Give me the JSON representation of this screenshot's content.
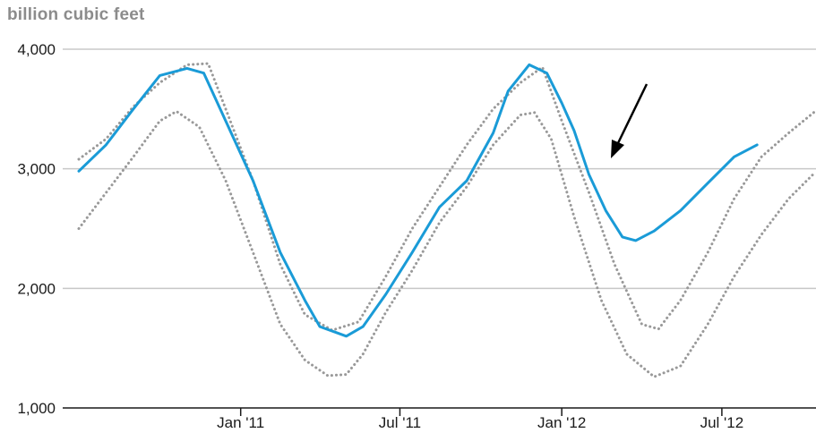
{
  "unit_label": "billion cubic feet",
  "colors": {
    "series": "#1a9bd7",
    "range": "#999999",
    "grid": "#c8c8c8",
    "axis": "#1a1a1a",
    "arrow": "#000000"
  },
  "chart_data": {
    "type": "line",
    "title": "",
    "xlabel": "",
    "ylabel": "billion cubic feet",
    "ylim": [
      1000,
      4000
    ],
    "yticks": [
      1000,
      2000,
      3000,
      4000
    ],
    "ytick_labels": [
      "1,000",
      "2,000",
      "3,000",
      "4,000"
    ],
    "xlim": [
      "2010-07-01",
      "2012-10-15"
    ],
    "xticks": [
      "2011-01-01",
      "2011-07-01",
      "2012-01-01",
      "2012-07-01"
    ],
    "xtick_labels": [
      "Jan '11",
      "Jul '11",
      "Jan '12",
      "Jul '12"
    ],
    "grid": true,
    "legend": "none",
    "annotation": "arrow pointing at the working gas storage line in early 2012",
    "series": [
      {
        "role": "value",
        "style": "solid",
        "points": [
          [
            "2010-07-01",
            2980
          ],
          [
            "2010-08-01",
            3200
          ],
          [
            "2010-09-01",
            3500
          ],
          [
            "2010-10-01",
            3780
          ],
          [
            "2010-11-01",
            3840
          ],
          [
            "2010-11-20",
            3800
          ],
          [
            "2010-12-15",
            3400
          ],
          [
            "2011-01-15",
            2900
          ],
          [
            "2011-02-15",
            2300
          ],
          [
            "2011-03-15",
            1900
          ],
          [
            "2011-04-01",
            1680
          ],
          [
            "2011-04-20",
            1630
          ],
          [
            "2011-05-01",
            1600
          ],
          [
            "2011-05-20",
            1680
          ],
          [
            "2011-06-15",
            1950
          ],
          [
            "2011-07-15",
            2300
          ],
          [
            "2011-08-15",
            2680
          ],
          [
            "2011-09-15",
            2900
          ],
          [
            "2011-10-15",
            3300
          ],
          [
            "2011-11-01",
            3650
          ],
          [
            "2011-11-25",
            3870
          ],
          [
            "2011-12-15",
            3800
          ],
          [
            "2012-01-01",
            3550
          ],
          [
            "2012-01-15",
            3320
          ],
          [
            "2012-02-01",
            2950
          ],
          [
            "2012-02-20",
            2650
          ],
          [
            "2012-03-10",
            2430
          ],
          [
            "2012-03-25",
            2400
          ],
          [
            "2012-04-15",
            2480
          ],
          [
            "2012-05-15",
            2650
          ],
          [
            "2012-06-15",
            2880
          ],
          [
            "2012-07-15",
            3100
          ],
          [
            "2012-08-10",
            3200
          ]
        ]
      },
      {
        "role": "range-upper",
        "style": "dotted",
        "points": [
          [
            "2010-07-01",
            3080
          ],
          [
            "2010-08-01",
            3250
          ],
          [
            "2010-09-01",
            3520
          ],
          [
            "2010-10-01",
            3720
          ],
          [
            "2010-11-01",
            3870
          ],
          [
            "2010-11-25",
            3880
          ],
          [
            "2010-12-15",
            3500
          ],
          [
            "2011-01-15",
            2900
          ],
          [
            "2011-02-15",
            2200
          ],
          [
            "2011-03-15",
            1780
          ],
          [
            "2011-04-15",
            1650
          ],
          [
            "2011-05-15",
            1720
          ],
          [
            "2011-06-15",
            2100
          ],
          [
            "2011-07-15",
            2500
          ],
          [
            "2011-08-15",
            2850
          ],
          [
            "2011-09-15",
            3200
          ],
          [
            "2011-10-15",
            3500
          ],
          [
            "2011-11-15",
            3720
          ],
          [
            "2011-12-10",
            3850
          ],
          [
            "2012-01-01",
            3400
          ],
          [
            "2012-02-01",
            2800
          ],
          [
            "2012-03-01",
            2200
          ],
          [
            "2012-04-01",
            1700
          ],
          [
            "2012-04-20",
            1660
          ],
          [
            "2012-05-15",
            1900
          ],
          [
            "2012-06-15",
            2300
          ],
          [
            "2012-07-15",
            2750
          ],
          [
            "2012-08-15",
            3100
          ],
          [
            "2012-09-15",
            3300
          ],
          [
            "2012-10-15",
            3480
          ]
        ]
      },
      {
        "role": "range-lower",
        "style": "dotted",
        "points": [
          [
            "2010-07-01",
            2500
          ],
          [
            "2010-08-01",
            2800
          ],
          [
            "2010-09-01",
            3100
          ],
          [
            "2010-10-01",
            3400
          ],
          [
            "2010-10-20",
            3480
          ],
          [
            "2010-11-15",
            3350
          ],
          [
            "2010-12-15",
            2900
          ],
          [
            "2011-01-15",
            2300
          ],
          [
            "2011-02-15",
            1700
          ],
          [
            "2011-03-15",
            1400
          ],
          [
            "2011-04-10",
            1270
          ],
          [
            "2011-05-01",
            1280
          ],
          [
            "2011-05-20",
            1450
          ],
          [
            "2011-06-15",
            1800
          ],
          [
            "2011-07-15",
            2150
          ],
          [
            "2011-08-15",
            2550
          ],
          [
            "2011-09-15",
            2850
          ],
          [
            "2011-10-15",
            3200
          ],
          [
            "2011-11-15",
            3450
          ],
          [
            "2011-12-01",
            3470
          ],
          [
            "2011-12-20",
            3250
          ],
          [
            "2012-01-15",
            2600
          ],
          [
            "2012-02-15",
            1900
          ],
          [
            "2012-03-15",
            1450
          ],
          [
            "2012-04-15",
            1260
          ],
          [
            "2012-05-15",
            1350
          ],
          [
            "2012-06-15",
            1700
          ],
          [
            "2012-07-15",
            2100
          ],
          [
            "2012-08-15",
            2450
          ],
          [
            "2012-09-15",
            2750
          ],
          [
            "2012-10-15",
            2970
          ]
        ]
      }
    ]
  }
}
